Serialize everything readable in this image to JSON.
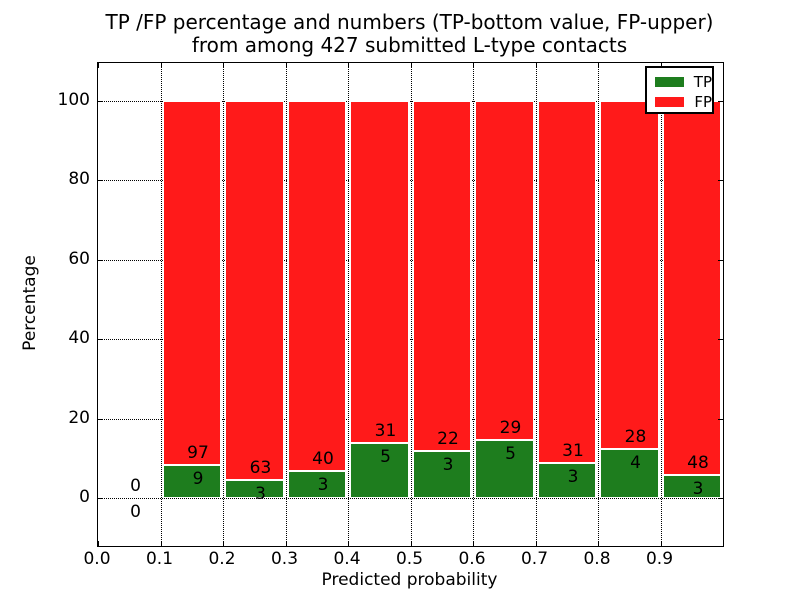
{
  "chart_data": {
    "type": "bar",
    "stacked": true,
    "title_line1": "TP /FP percentage and numbers (TP-bottom value, FP-upper)",
    "title_line2": "from among 427 submitted L-type contacts",
    "xlabel": "Predicted probability",
    "ylabel": "Percentage",
    "xlim": [
      0.0,
      1.0
    ],
    "ylim": [
      -12,
      109.5
    ],
    "x_ticks": [
      "0.0",
      "0.1",
      "0.2",
      "0.3",
      "0.4",
      "0.5",
      "0.6",
      "0.7",
      "0.8",
      "0.9"
    ],
    "y_ticks": [
      "0",
      "20",
      "40",
      "60",
      "80",
      "100"
    ],
    "grid": true,
    "total_contacts": 427,
    "legend": {
      "position": "upper right",
      "entries": [
        {
          "label": "TP",
          "color": "#1e7d1e"
        },
        {
          "label": "FP",
          "color": "#ff1a1a"
        }
      ]
    },
    "bins": [
      {
        "x_start": 0.0,
        "x_end": 0.1,
        "tp": 0,
        "fp": 0,
        "tp_pct": 0
      },
      {
        "x_start": 0.1,
        "x_end": 0.2,
        "tp": 9,
        "fp": 97,
        "tp_pct": 8.49
      },
      {
        "x_start": 0.2,
        "x_end": 0.3,
        "tp": 3,
        "fp": 63,
        "tp_pct": 4.55
      },
      {
        "x_start": 0.3,
        "x_end": 0.4,
        "tp": 3,
        "fp": 40,
        "tp_pct": 6.98
      },
      {
        "x_start": 0.4,
        "x_end": 0.5,
        "tp": 5,
        "fp": 31,
        "tp_pct": 13.89
      },
      {
        "x_start": 0.5,
        "x_end": 0.6,
        "tp": 3,
        "fp": 22,
        "tp_pct": 12.0
      },
      {
        "x_start": 0.6,
        "x_end": 0.7,
        "tp": 5,
        "fp": 29,
        "tp_pct": 14.71
      },
      {
        "x_start": 0.7,
        "x_end": 0.8,
        "tp": 3,
        "fp": 31,
        "tp_pct": 8.82
      },
      {
        "x_start": 0.8,
        "x_end": 0.9,
        "tp": 4,
        "fp": 28,
        "tp_pct": 12.5
      },
      {
        "x_start": 0.9,
        "x_end": 1.0,
        "tp": 3,
        "fp": 48,
        "tp_pct": 5.88
      }
    ],
    "colors": {
      "tp": "#1e7d1e",
      "fp": "#ff1a1a",
      "grid": "#000000",
      "axis": "#000000",
      "background": "#ffffff",
      "text": "#000000"
    }
  }
}
